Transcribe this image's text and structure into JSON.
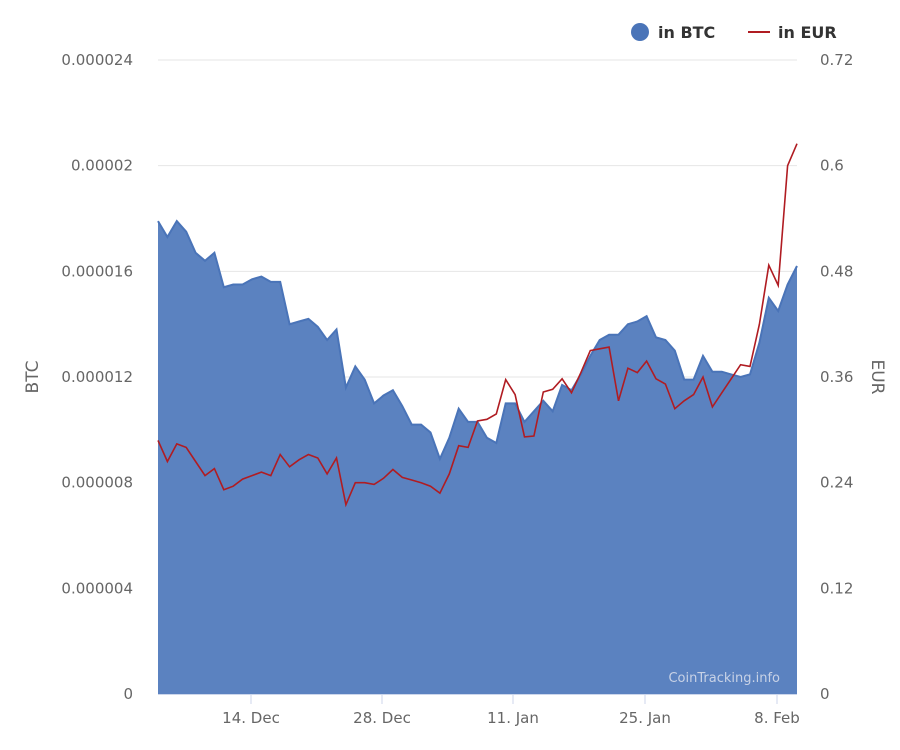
{
  "chart_data": {
    "type": "area",
    "legend_position": "top-right",
    "grid": true,
    "xlabel": "",
    "x_tick_labels": [
      "14. Dec",
      "28. Dec",
      "11. Jan",
      "25. Jan",
      "8. Feb"
    ],
    "y_left": {
      "label": "BTC",
      "lim": [
        0,
        2.4e-05
      ],
      "ticks": [
        "0",
        "0.000004",
        "0.000008",
        "0.000012",
        "0.000016",
        "0.00002",
        "0.000024"
      ]
    },
    "y_right": {
      "label": "EUR",
      "lim": [
        0,
        0.72
      ],
      "ticks": [
        "0",
        "0.12",
        "0.24",
        "0.36",
        "0.48",
        "0.6",
        "0.72"
      ]
    },
    "series": [
      {
        "name": "in BTC",
        "type": "area",
        "axis": "left",
        "color": "#4a74b8",
        "values": [
          1.79e-05,
          1.73e-05,
          1.79e-05,
          1.75e-05,
          1.67e-05,
          1.64e-05,
          1.67e-05,
          1.54e-05,
          1.55e-05,
          1.55e-05,
          1.57e-05,
          1.58e-05,
          1.56e-05,
          1.56e-05,
          1.4e-05,
          1.41e-05,
          1.42e-05,
          1.39e-05,
          1.34e-05,
          1.38e-05,
          1.16e-05,
          1.24e-05,
          1.19e-05,
          1.1e-05,
          1.13e-05,
          1.15e-05,
          1.09e-05,
          1.02e-05,
          1.02e-05,
          9.9e-06,
          8.9e-06,
          9.7e-06,
          1.08e-05,
          1.03e-05,
          1.03e-05,
          9.7e-06,
          9.5e-06,
          1.1e-05,
          1.1e-05,
          1.03e-05,
          1.07e-05,
          1.11e-05,
          1.07e-05,
          1.17e-05,
          1.15e-05,
          1.21e-05,
          1.28e-05,
          1.34e-05,
          1.36e-05,
          1.36e-05,
          1.4e-05,
          1.41e-05,
          1.43e-05,
          1.35e-05,
          1.34e-05,
          1.3e-05,
          1.19e-05,
          1.19e-05,
          1.28e-05,
          1.22e-05,
          1.22e-05,
          1.21e-05,
          1.2e-05,
          1.21e-05,
          1.33e-05,
          1.5e-05,
          1.45e-05,
          1.55e-05,
          1.62e-05
        ]
      },
      {
        "name": "in EUR",
        "type": "line",
        "axis": "right",
        "color": "#b01c22",
        "values": [
          0.288,
          0.264,
          0.284,
          0.28,
          0.264,
          0.248,
          0.256,
          0.232,
          0.236,
          0.244,
          0.248,
          0.252,
          0.248,
          0.272,
          0.258,
          0.266,
          0.272,
          0.268,
          0.25,
          0.268,
          0.215,
          0.24,
          0.24,
          0.238,
          0.245,
          0.255,
          0.246,
          0.243,
          0.24,
          0.236,
          0.228,
          0.25,
          0.282,
          0.28,
          0.31,
          0.312,
          0.318,
          0.357,
          0.34,
          0.292,
          0.293,
          0.343,
          0.346,
          0.358,
          0.342,
          0.365,
          0.39,
          0.392,
          0.394,
          0.333,
          0.37,
          0.365,
          0.378,
          0.358,
          0.352,
          0.324,
          0.333,
          0.34,
          0.36,
          0.326,
          0.342,
          0.358,
          0.374,
          0.372,
          0.42,
          0.487,
          0.464,
          0.6,
          0.625
        ]
      }
    ],
    "credit": "CoinTracking.info"
  }
}
